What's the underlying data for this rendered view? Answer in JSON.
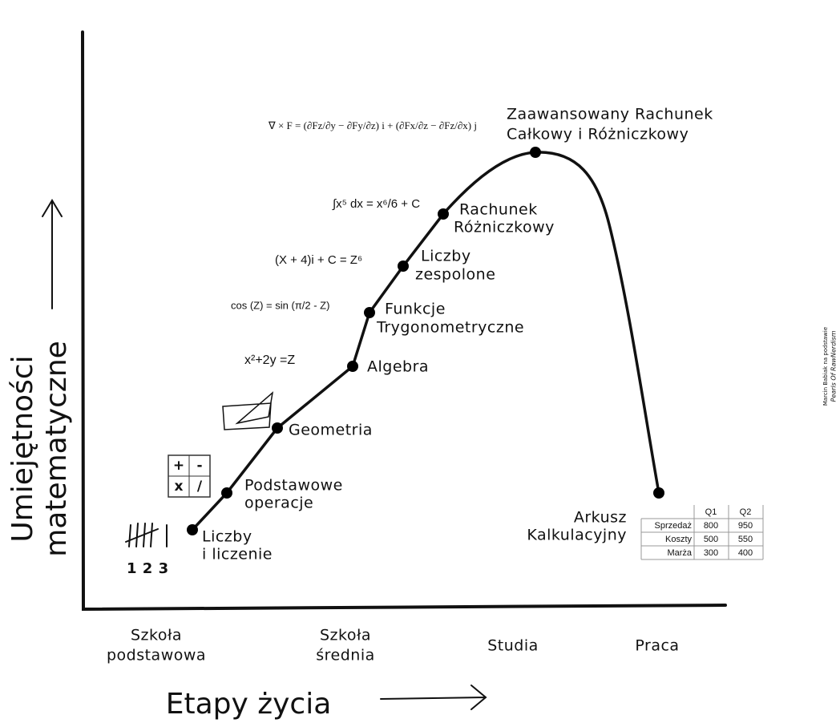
{
  "y_axis_label": [
    "Umiejętności",
    "matematyczne"
  ],
  "x_axis_label": "Etapy życia",
  "stages": [
    [
      "Szkoła",
      "podstawowa"
    ],
    [
      "Szkoła",
      "średnia"
    ],
    [
      "Studia"
    ],
    [
      "Praca"
    ]
  ],
  "nodes": [
    {
      "label": [
        "Liczby",
        "i liczenie"
      ]
    },
    {
      "label": [
        "Podstawowe",
        "operacje"
      ]
    },
    {
      "label": [
        "Geometria"
      ]
    },
    {
      "label": [
        "Algebra"
      ]
    },
    {
      "label": [
        "Funkcje",
        "Trygonometryczne"
      ]
    },
    {
      "label": [
        "Liczby",
        "zespolone"
      ]
    },
    {
      "label": [
        "Rachunek",
        "Różniczkowy"
      ]
    },
    {
      "label": [
        "Zaawansowany Rachunek",
        "Całkowy i Różniczkowy"
      ]
    },
    {
      "label": [
        "Arkusz",
        "Kalkulacyjny"
      ]
    }
  ],
  "tally_digits": "1 2 3",
  "operators": [
    "+",
    "-",
    "x",
    "/"
  ],
  "formulas": {
    "algebra": "x²+2y =Z",
    "trig": "cos (Z) = sin (π/2 - Z)",
    "complex": "(X + 4)i + C = Z⁶",
    "calculus": "∫x⁵ dx = x⁶/6 + C",
    "curl": "∇ × F = (∂Fz/∂y − ∂Fy/∂z) i + (∂Fx/∂z − ∂Fz/∂x) j"
  },
  "table": {
    "columns": [
      "Q1",
      "Q2"
    ],
    "rows": [
      {
        "label": "Sprzedaż",
        "cells": [
          "800",
          "950"
        ]
      },
      {
        "label": "Koszty",
        "cells": [
          "500",
          "550"
        ]
      },
      {
        "label": "Marża",
        "cells": [
          "300",
          "400"
        ]
      }
    ]
  },
  "credit": [
    "Marcin Babiak na podstawie",
    "Pearls Of RawNerdism"
  ]
}
